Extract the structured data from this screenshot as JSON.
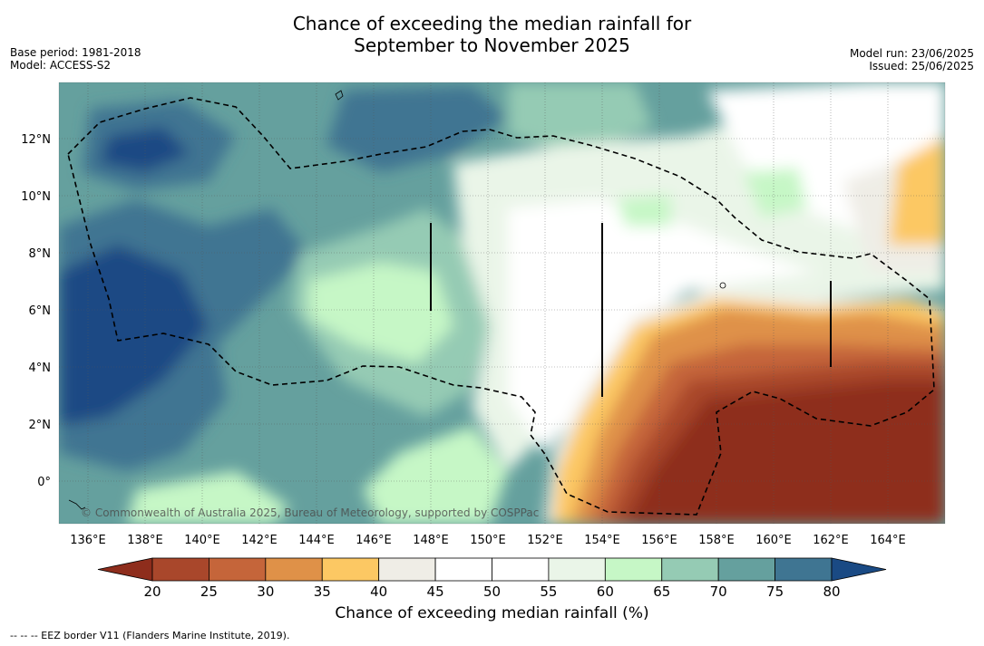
{
  "title_line1": "Chance of exceeding the median rainfall for",
  "title_line2": "September to November 2025",
  "meta_left": {
    "base_period": "Base period: 1981-2018",
    "model": "Model: ACCESS-S2"
  },
  "meta_right": {
    "model_run": "Model run: 23/06/2025",
    "issued": "Issued: 25/06/2025"
  },
  "copyright": "© Commonwealth of Australia 2025, Bureau of Meteorology, supported by COSPPac",
  "lon_labels": [
    "136°E",
    "138°E",
    "140°E",
    "142°E",
    "144°E",
    "146°E",
    "148°E",
    "150°E",
    "152°E",
    "154°E",
    "156°E",
    "158°E",
    "160°E",
    "162°E",
    "164°E"
  ],
  "lat_labels": [
    "12°N",
    "10°N",
    "8°N",
    "6°N",
    "4°N",
    "2°N",
    "0°"
  ],
  "colorbar": {
    "ticks": [
      "20",
      "25",
      "30",
      "35",
      "40",
      "45",
      "50",
      "55",
      "60",
      "65",
      "70",
      "75",
      "80"
    ],
    "colors": [
      "#8e2d1c",
      "#a9472b",
      "#c5653a",
      "#df9148",
      "#fcc863",
      "#efede6",
      "#ffffff",
      "#ffffff",
      "#eaf5e8",
      "#c6f7c6",
      "#95cbb4",
      "#65a09e",
      "#3f7592",
      "#1a4a84"
    ],
    "label": "Chance of exceeding median rainfall (%)"
  },
  "footnote": "-- -- -- EEZ border V11 (Flanders Marine Institute, 2019)."
}
